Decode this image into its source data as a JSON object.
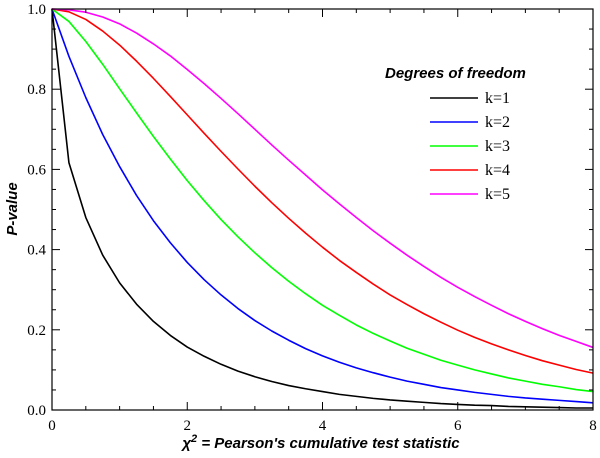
{
  "chart_data": {
    "type": "line",
    "title": "",
    "xlabel": "χ² = Pearson's cumulative test statistic",
    "xlabel_main": "χ",
    "xlabel_sup": "2",
    "xlabel_rest": " = Pearson's cumulative test statistic",
    "ylabel": "P-value",
    "xlim": [
      0,
      8
    ],
    "ylim": [
      0,
      1
    ],
    "x_ticks": [
      0,
      2,
      4,
      6,
      8
    ],
    "x_tick_labels": [
      "0",
      "2",
      "4",
      "6",
      "8"
    ],
    "y_ticks": [
      0,
      0.2,
      0.4,
      0.6,
      0.8,
      1.0
    ],
    "y_tick_labels": [
      "0.0",
      "0.2",
      "0.4",
      "0.6",
      "0.8",
      "1.0"
    ],
    "grid": false,
    "legend": {
      "title": "Degrees of freedom",
      "position": "top-right"
    },
    "x": [
      0,
      0.25,
      0.5,
      0.75,
      1,
      1.25,
      1.5,
      1.75,
      2,
      2.25,
      2.5,
      2.75,
      3,
      3.25,
      3.5,
      3.75,
      4,
      4.25,
      4.5,
      4.75,
      5,
      5.25,
      5.5,
      5.75,
      6,
      6.25,
      6.5,
      6.75,
      7,
      7.25,
      7.5,
      7.75,
      8
    ],
    "series": [
      {
        "name": "k=1",
        "color": "#000000",
        "values": [
          1.0,
          0.617,
          0.48,
          0.386,
          0.317,
          0.264,
          0.221,
          0.186,
          0.157,
          0.134,
          0.114,
          0.097,
          0.083,
          0.071,
          0.061,
          0.053,
          0.046,
          0.039,
          0.034,
          0.029,
          0.025,
          0.022,
          0.019,
          0.016,
          0.014,
          0.012,
          0.011,
          0.009,
          0.008,
          0.007,
          0.006,
          0.005,
          0.005
        ]
      },
      {
        "name": "k=2",
        "color": "#0000ff",
        "values": [
          1.0,
          0.882,
          0.779,
          0.687,
          0.607,
          0.535,
          0.472,
          0.417,
          0.368,
          0.325,
          0.287,
          0.253,
          0.223,
          0.197,
          0.174,
          0.153,
          0.135,
          0.119,
          0.105,
          0.093,
          0.082,
          0.072,
          0.064,
          0.056,
          0.05,
          0.044,
          0.039,
          0.034,
          0.03,
          0.027,
          0.024,
          0.021,
          0.018
        ]
      },
      {
        "name": "k=3",
        "color": "#00ff00",
        "values": [
          1.0,
          0.969,
          0.919,
          0.862,
          0.801,
          0.741,
          0.682,
          0.626,
          0.572,
          0.522,
          0.475,
          0.432,
          0.392,
          0.355,
          0.321,
          0.29,
          0.261,
          0.236,
          0.212,
          0.191,
          0.172,
          0.154,
          0.139,
          0.124,
          0.112,
          0.1,
          0.09,
          0.08,
          0.072,
          0.064,
          0.058,
          0.051,
          0.046
        ]
      },
      {
        "name": "k=4",
        "color": "#ff0000",
        "values": [
          1.0,
          0.993,
          0.974,
          0.945,
          0.91,
          0.87,
          0.827,
          0.782,
          0.736,
          0.69,
          0.645,
          0.601,
          0.558,
          0.517,
          0.478,
          0.441,
          0.406,
          0.373,
          0.343,
          0.314,
          0.287,
          0.263,
          0.24,
          0.219,
          0.199,
          0.181,
          0.165,
          0.15,
          0.136,
          0.123,
          0.112,
          0.101,
          0.092
        ]
      },
      {
        "name": "k=5",
        "color": "#ff00ff",
        "values": [
          1.0,
          0.998,
          0.992,
          0.98,
          0.963,
          0.94,
          0.913,
          0.883,
          0.849,
          0.814,
          0.777,
          0.739,
          0.7,
          0.661,
          0.623,
          0.586,
          0.549,
          0.514,
          0.48,
          0.447,
          0.416,
          0.386,
          0.358,
          0.331,
          0.306,
          0.283,
          0.261,
          0.24,
          0.221,
          0.203,
          0.186,
          0.171,
          0.156
        ]
      }
    ]
  }
}
